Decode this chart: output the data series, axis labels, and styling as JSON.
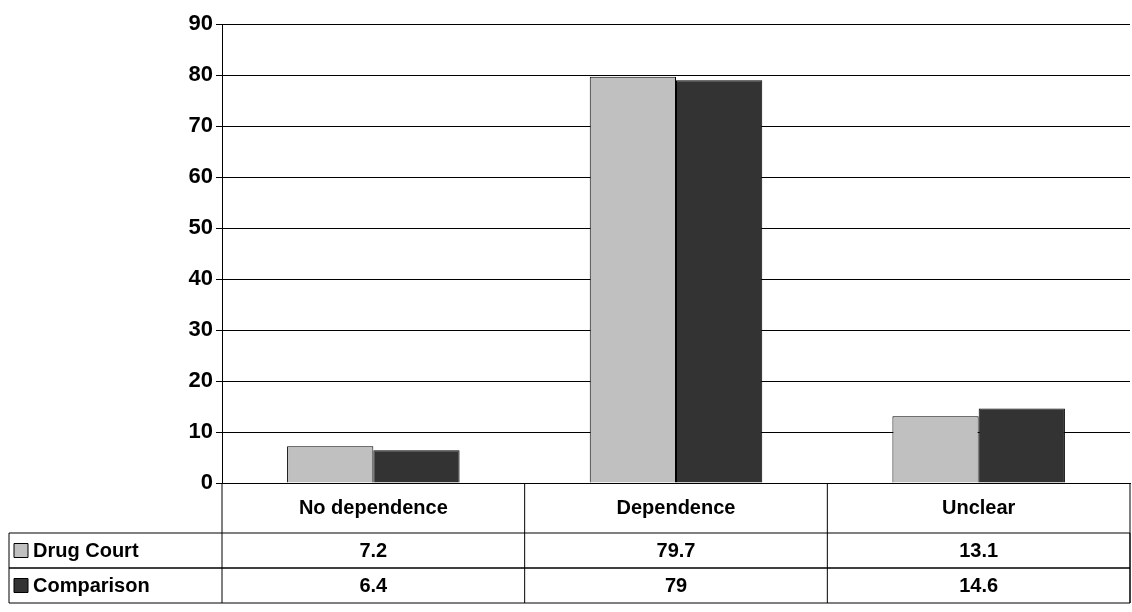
{
  "chart_data": {
    "type": "bar",
    "categories": [
      "No dependence",
      "Dependence",
      "Unclear"
    ],
    "series": [
      {
        "name": "Drug Court",
        "color": "#c0c0c0",
        "values": [
          7.2,
          79.7,
          13.1
        ]
      },
      {
        "name": "Comparison",
        "color": "#333333",
        "values": [
          6.4,
          79,
          14.6
        ]
      }
    ],
    "ylim": [
      0,
      90
    ],
    "yticks": [
      0,
      10,
      20,
      30,
      40,
      50,
      60,
      70,
      80,
      90
    ],
    "grid": "y",
    "legend": "bottom",
    "data_labels": true
  }
}
